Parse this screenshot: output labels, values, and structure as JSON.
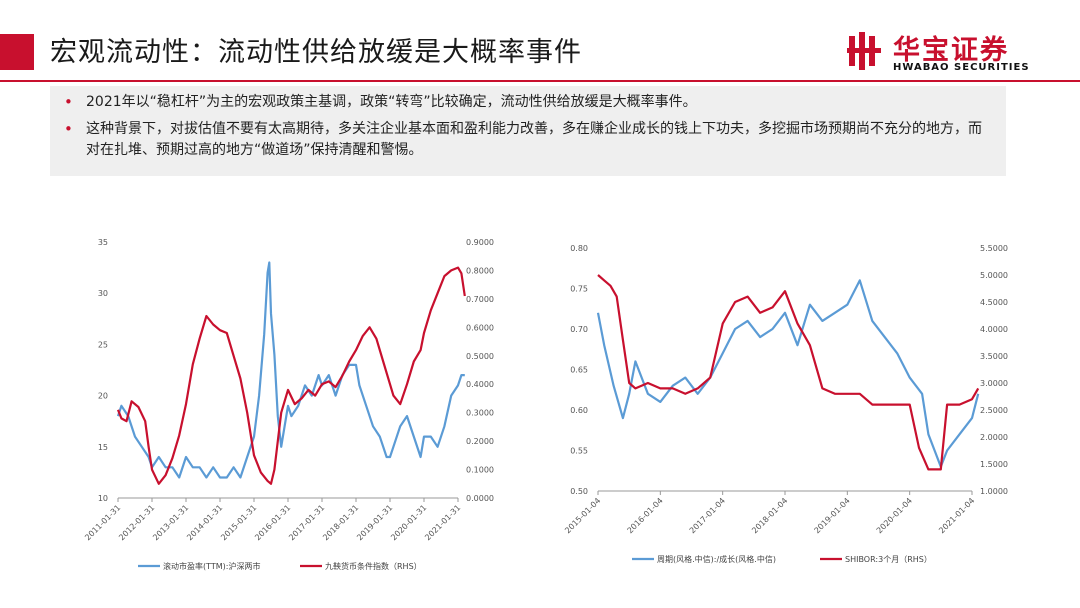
{
  "header": {
    "title": "宏观流动性：流动性供给放缓是大概率事件",
    "logo_cn": "华宝证券",
    "logo_en": "HWABAO SECURITIES",
    "accent_color": "#c8102e"
  },
  "bullets": [
    {
      "text": "2021年以“稳杠杆”为主的宏观政策主基调，政策“转弯”比较确定，流动性供给放缓是大概率事件。"
    },
    {
      "text": "这种背景下，对拔估值不要有太高期待，多关注企业基本面和盈利能力改善，多在赚企业成长的钱上下功夫，多挖掘市场预期尚不充分的地方，而对在扎堆、预期过高的地方“做道场”保持清醒和警惕。"
    }
  ],
  "chart_data": [
    {
      "type": "line",
      "x_tick_labels": [
        "2011-01-31",
        "2012-01-31",
        "2013-01-31",
        "2014-01-31",
        "2015-01-31",
        "2016-01-31",
        "2017-01-31",
        "2018-01-31",
        "2019-01-31",
        "2020-01-31",
        "2021-01-31"
      ],
      "left_axis": {
        "ylim": [
          10,
          35
        ],
        "tick_labels": [
          "10",
          "15",
          "20",
          "25",
          "30",
          "35"
        ]
      },
      "right_axis": {
        "ylim": [
          0,
          0.9
        ],
        "tick_labels": [
          "0.0000",
          "0.1000",
          "0.2000",
          "0.3000",
          "0.4000",
          "0.5000",
          "0.6000",
          "0.7000",
          "0.8000",
          "0.9000"
        ]
      },
      "series": [
        {
          "name": "滚动市盈率(TTM):沪深两市",
          "axis": "left",
          "color": "#5b9bd5",
          "x": [
            2011.0,
            2011.1,
            2011.3,
            2011.5,
            2011.7,
            2011.9,
            2012.0,
            2012.2,
            2012.4,
            2012.6,
            2012.8,
            2013.0,
            2013.2,
            2013.4,
            2013.6,
            2013.8,
            2014.0,
            2014.2,
            2014.4,
            2014.6,
            2014.8,
            2015.0,
            2015.15,
            2015.3,
            2015.4,
            2015.45,
            2015.5,
            2015.6,
            2015.7,
            2015.8,
            2015.9,
            2016.0,
            2016.1,
            2016.3,
            2016.5,
            2016.7,
            2016.9,
            2017.0,
            2017.2,
            2017.4,
            2017.6,
            2017.8,
            2018.0,
            2018.1,
            2018.3,
            2018.5,
            2018.7,
            2018.9,
            2019.0,
            2019.1,
            2019.3,
            2019.5,
            2019.7,
            2019.9,
            2020.0,
            2020.2,
            2020.4,
            2020.6,
            2020.8,
            2021.0,
            2021.1,
            2021.2
          ],
          "values": [
            18,
            19,
            18,
            16,
            15,
            14,
            13,
            14,
            13,
            13,
            12,
            14,
            13,
            13,
            12,
            13,
            12,
            12,
            13,
            12,
            14,
            16,
            20,
            26,
            32,
            33,
            28,
            24,
            18,
            15,
            17,
            19,
            18,
            19,
            21,
            20,
            22,
            21,
            22,
            20,
            22,
            23,
            23,
            21,
            19,
            17,
            16,
            14,
            14,
            15,
            17,
            18,
            16,
            14,
            16,
            16,
            15,
            17,
            20,
            21,
            22,
            22
          ]
        },
        {
          "name": "九鞅货币条件指数（RHS）",
          "axis": "right",
          "color": "#c8102e",
          "x": [
            2011.0,
            2011.1,
            2011.25,
            2011.4,
            2011.6,
            2011.8,
            2011.9,
            2012.0,
            2012.2,
            2012.4,
            2012.6,
            2012.8,
            2013.0,
            2013.2,
            2013.4,
            2013.6,
            2013.8,
            2014.0,
            2014.2,
            2014.4,
            2014.6,
            2014.8,
            2015.0,
            2015.2,
            2015.4,
            2015.5,
            2015.6,
            2015.7,
            2015.8,
            2016.0,
            2016.2,
            2016.4,
            2016.6,
            2016.8,
            2017.0,
            2017.2,
            2017.4,
            2017.6,
            2017.8,
            2018.0,
            2018.2,
            2018.4,
            2018.6,
            2018.8,
            2019.0,
            2019.1,
            2019.3,
            2019.5,
            2019.7,
            2019.9,
            2020.0,
            2020.2,
            2020.4,
            2020.6,
            2020.8,
            2021.0,
            2021.1,
            2021.2
          ],
          "values": [
            0.31,
            0.28,
            0.27,
            0.34,
            0.32,
            0.27,
            0.18,
            0.1,
            0.05,
            0.08,
            0.14,
            0.22,
            0.33,
            0.47,
            0.56,
            0.64,
            0.61,
            0.59,
            0.58,
            0.5,
            0.42,
            0.3,
            0.15,
            0.09,
            0.06,
            0.05,
            0.1,
            0.2,
            0.3,
            0.38,
            0.33,
            0.35,
            0.38,
            0.36,
            0.4,
            0.41,
            0.39,
            0.43,
            0.48,
            0.52,
            0.57,
            0.6,
            0.56,
            0.48,
            0.4,
            0.36,
            0.33,
            0.4,
            0.48,
            0.52,
            0.58,
            0.66,
            0.72,
            0.78,
            0.8,
            0.81,
            0.79,
            0.71
          ]
        }
      ]
    },
    {
      "type": "line",
      "x_tick_labels": [
        "2015-01-04",
        "2016-01-04",
        "2017-01-04",
        "2018-01-04",
        "2019-01-04",
        "2020-01-04",
        "2021-01-04"
      ],
      "left_axis": {
        "ylim": [
          0.5,
          0.8
        ],
        "tick_labels": [
          "0.50",
          "0.55",
          "0.60",
          "0.65",
          "0.70",
          "0.75",
          "0.80"
        ]
      },
      "right_axis": {
        "ylim": [
          1.0,
          5.5
        ],
        "tick_labels": [
          "1.0000",
          "1.5000",
          "2.0000",
          "2.5000",
          "3.0000",
          "3.5000",
          "4.0000",
          "4.5000",
          "5.0000",
          "5.5000"
        ]
      },
      "series": [
        {
          "name": "周期(风格.中信):/成长(风格.中信)",
          "axis": "left",
          "color": "#5b9bd5",
          "x": [
            2015.0,
            2015.1,
            2015.25,
            2015.4,
            2015.5,
            2015.6,
            2015.8,
            2016.0,
            2016.2,
            2016.4,
            2016.6,
            2016.8,
            2017.0,
            2017.2,
            2017.4,
            2017.6,
            2017.8,
            2018.0,
            2018.2,
            2018.4,
            2018.6,
            2018.8,
            2019.0,
            2019.2,
            2019.4,
            2019.6,
            2019.8,
            2020.0,
            2020.2,
            2020.3,
            2020.4,
            2020.5,
            2020.6,
            2020.8,
            2021.0,
            2021.1
          ],
          "values": [
            0.72,
            0.68,
            0.63,
            0.59,
            0.62,
            0.66,
            0.62,
            0.61,
            0.63,
            0.64,
            0.62,
            0.64,
            0.67,
            0.7,
            0.71,
            0.69,
            0.7,
            0.72,
            0.68,
            0.73,
            0.71,
            0.72,
            0.73,
            0.76,
            0.71,
            0.69,
            0.67,
            0.64,
            0.62,
            0.57,
            0.55,
            0.53,
            0.55,
            0.57,
            0.59,
            0.62
          ]
        },
        {
          "name": "SHIBOR:3个月（RHS）",
          "axis": "right",
          "color": "#c8102e",
          "x": [
            2015.0,
            2015.1,
            2015.2,
            2015.3,
            2015.4,
            2015.5,
            2015.6,
            2015.8,
            2016.0,
            2016.2,
            2016.4,
            2016.6,
            2016.8,
            2017.0,
            2017.2,
            2017.4,
            2017.6,
            2017.8,
            2018.0,
            2018.2,
            2018.4,
            2018.6,
            2018.8,
            2019.0,
            2019.2,
            2019.4,
            2019.6,
            2019.8,
            2020.0,
            2020.15,
            2020.3,
            2020.5,
            2020.6,
            2020.8,
            2021.0,
            2021.1
          ],
          "values": [
            5.0,
            4.9,
            4.8,
            4.6,
            3.8,
            3.0,
            2.9,
            3.0,
            2.9,
            2.9,
            2.8,
            2.9,
            3.1,
            4.1,
            4.5,
            4.6,
            4.3,
            4.4,
            4.7,
            4.1,
            3.7,
            2.9,
            2.8,
            2.8,
            2.8,
            2.6,
            2.6,
            2.6,
            2.6,
            1.8,
            1.4,
            1.4,
            2.6,
            2.6,
            2.7,
            2.9
          ]
        }
      ]
    }
  ]
}
